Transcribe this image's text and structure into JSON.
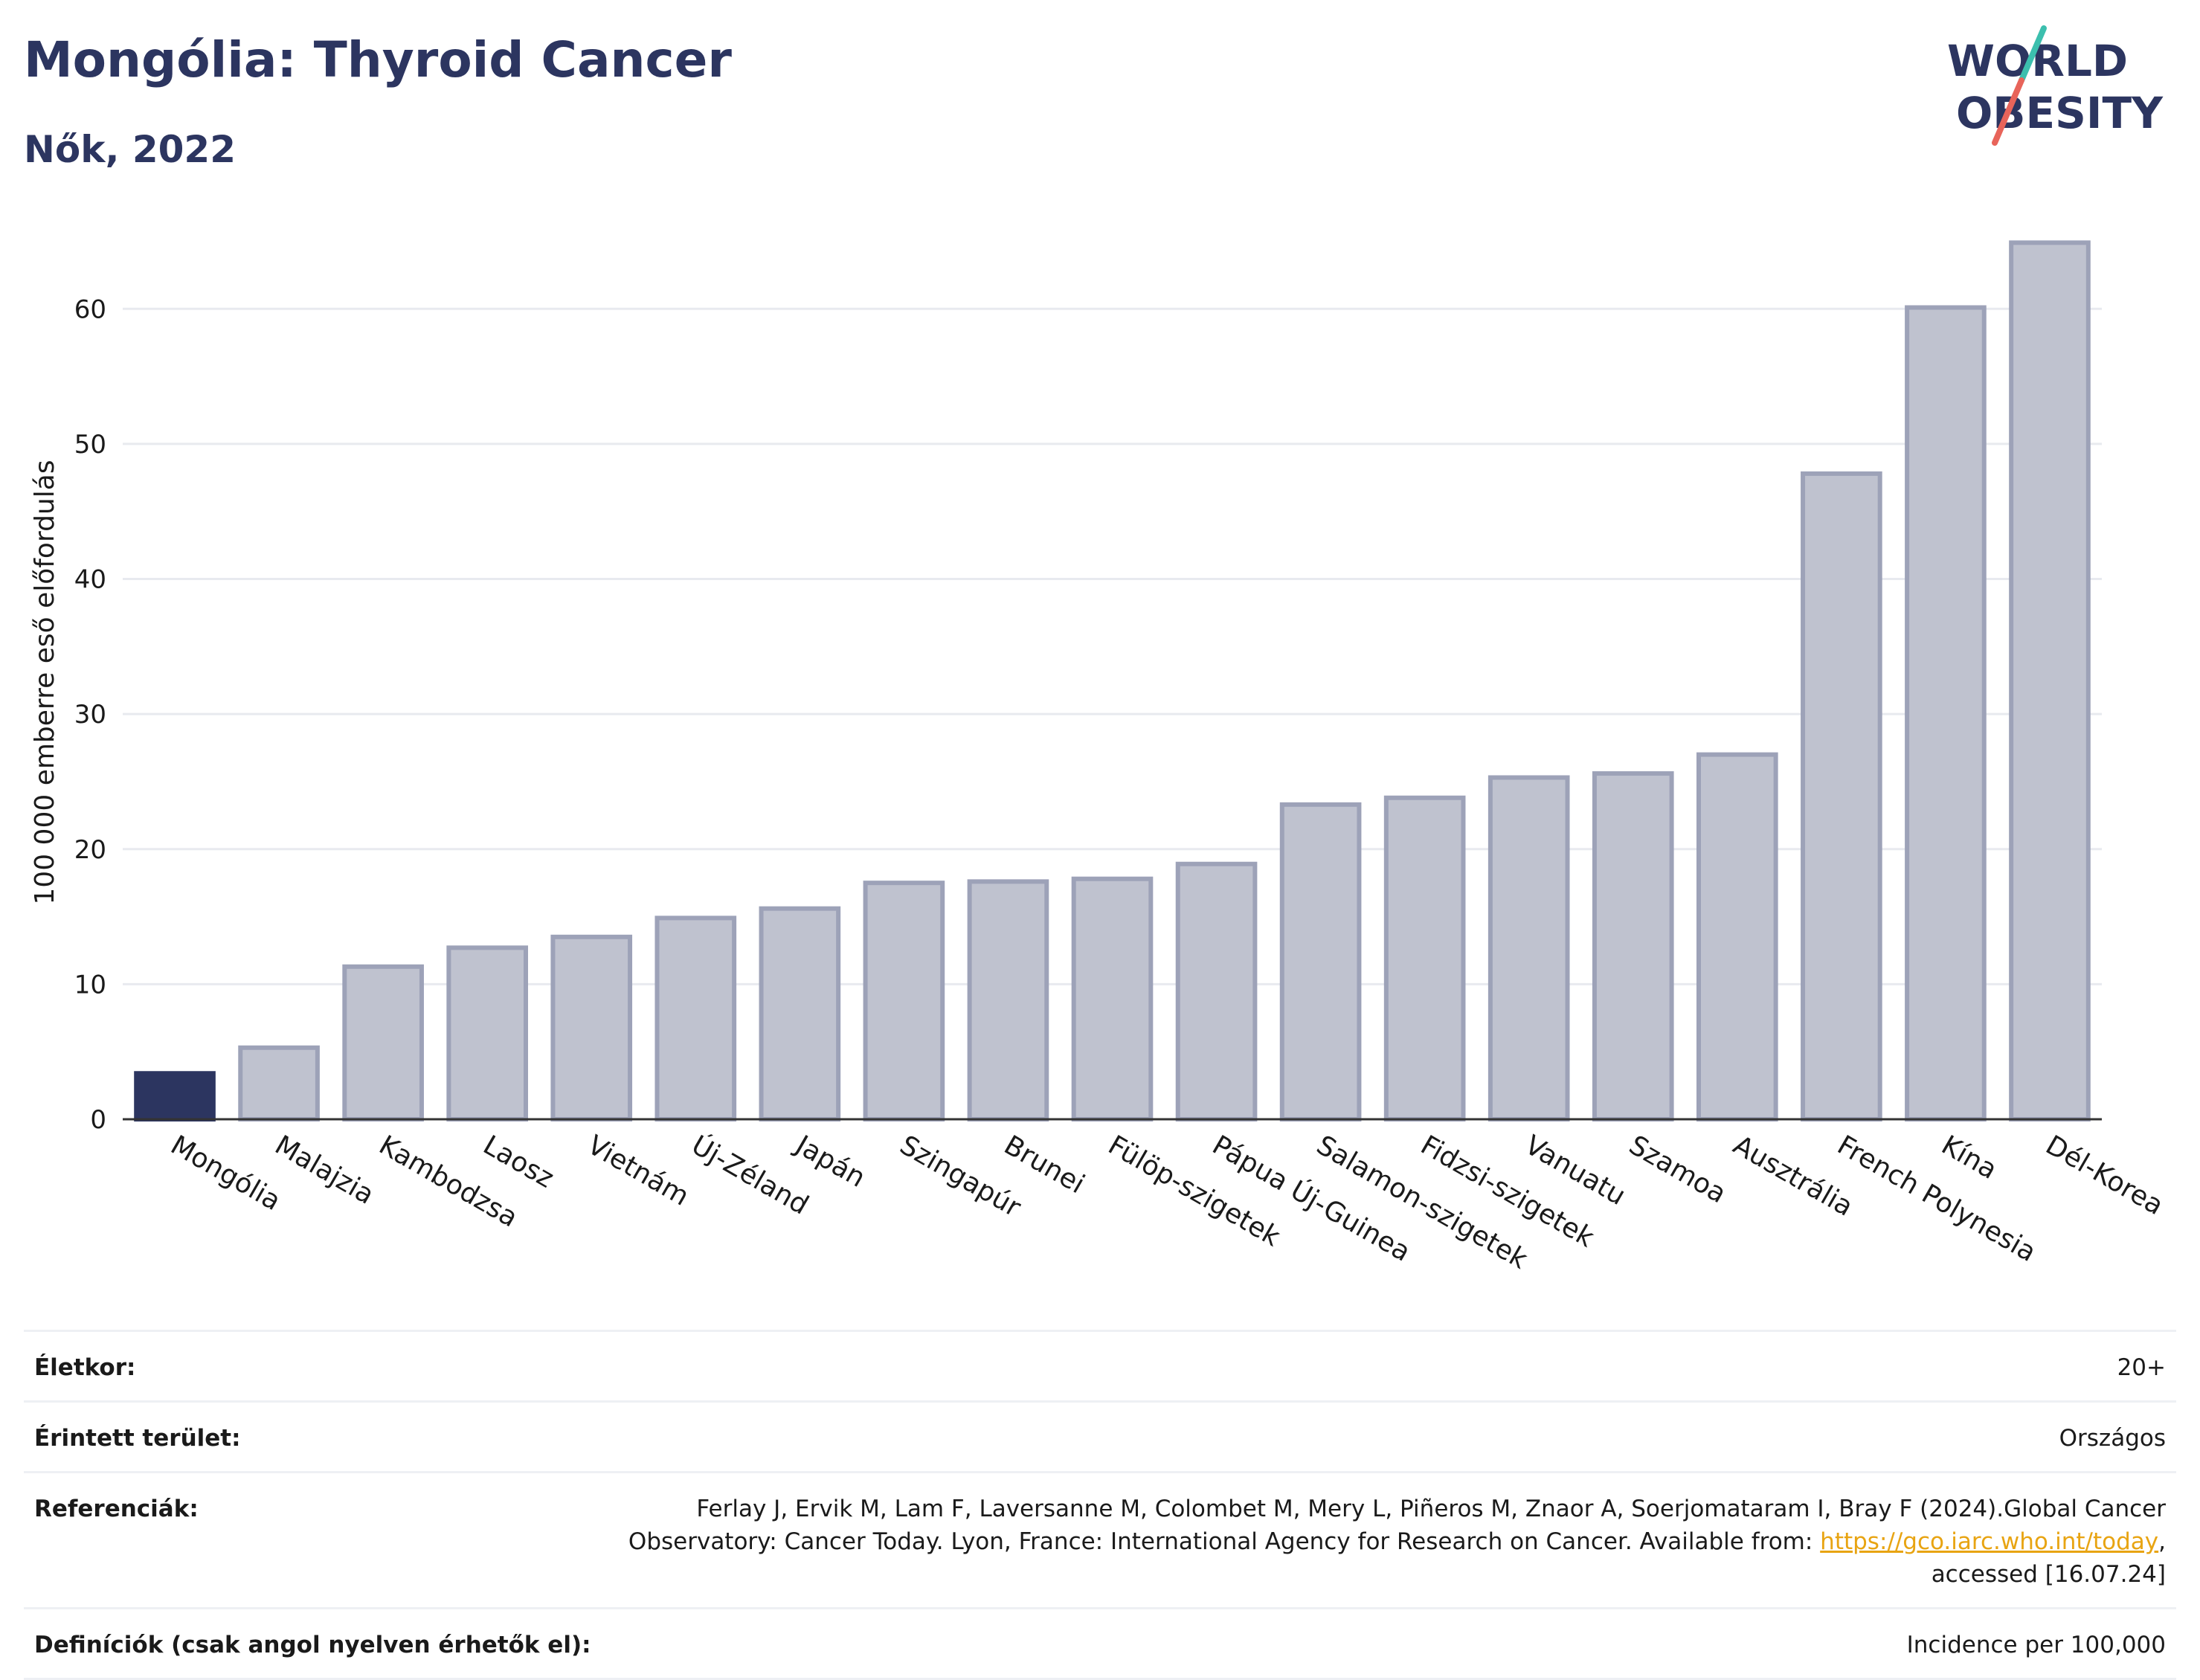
{
  "header": {
    "title": "Mongólia: Thyroid Cancer",
    "subtitle": "Nők, 2022"
  },
  "logo": {
    "line1": "WORLD",
    "line2": "OBESITY",
    "colors": {
      "text": "#2c3560",
      "slash_top": "#3cbfae",
      "slash_bottom": "#e8645a"
    }
  },
  "chart_data": {
    "type": "bar",
    "ylabel": "100 000 emberre eső előfordulás",
    "ylim": [
      0,
      68
    ],
    "yticks": [
      0,
      10,
      20,
      30,
      40,
      50,
      60
    ],
    "grid": true,
    "categories": [
      "Mongólia",
      "Malajzia",
      "Kambodzsa",
      "Laosz",
      "Vietnám",
      "Új-Zéland",
      "Japán",
      "Szingapúr",
      "Brunei",
      "Fülöp-szigetek",
      "Pápua Új-Guinea",
      "Salamon-szigetek",
      "Fidzsi-szigetek",
      "Vanuatu",
      "Szamoa",
      "Ausztrália",
      "French Polynesia",
      "Kína",
      "Dél-Korea"
    ],
    "values": [
      3.4,
      5.3,
      11.3,
      12.7,
      13.5,
      14.9,
      15.6,
      17.5,
      17.6,
      17.8,
      18.9,
      23.3,
      23.8,
      25.3,
      25.6,
      27.0,
      47.8,
      60.1,
      64.9
    ],
    "highlight_index": 0,
    "colors": {
      "highlight": "#2c3560",
      "bar": "#bfc2cf",
      "bar_stroke": "#9da2b8",
      "grid": "#e8eaef",
      "axis": "#333333"
    }
  },
  "meta": {
    "age_label": "Életkor:",
    "age_value": "20+",
    "area_label": "Érintett terület:",
    "area_value": "Országos",
    "ref_label": "Referenciák:",
    "ref_text_1": "Ferlay J, Ervik M, Lam F, Laversanne M, Colombet M, Mery L, Piñeros M, Znaor A, Soerjomataram I, Bray F (2024).Global Cancer Observatory: Cancer Today. Lyon, France: International Agency for Research on Cancer. Available from: ",
    "ref_link": "https://gco.iarc.who.int/today",
    "ref_text_2": ", accessed [16.07.24]",
    "def_label": "Definíciók (csak angol nyelven érhetők el):",
    "def_value": "Incidence per 100,000"
  }
}
